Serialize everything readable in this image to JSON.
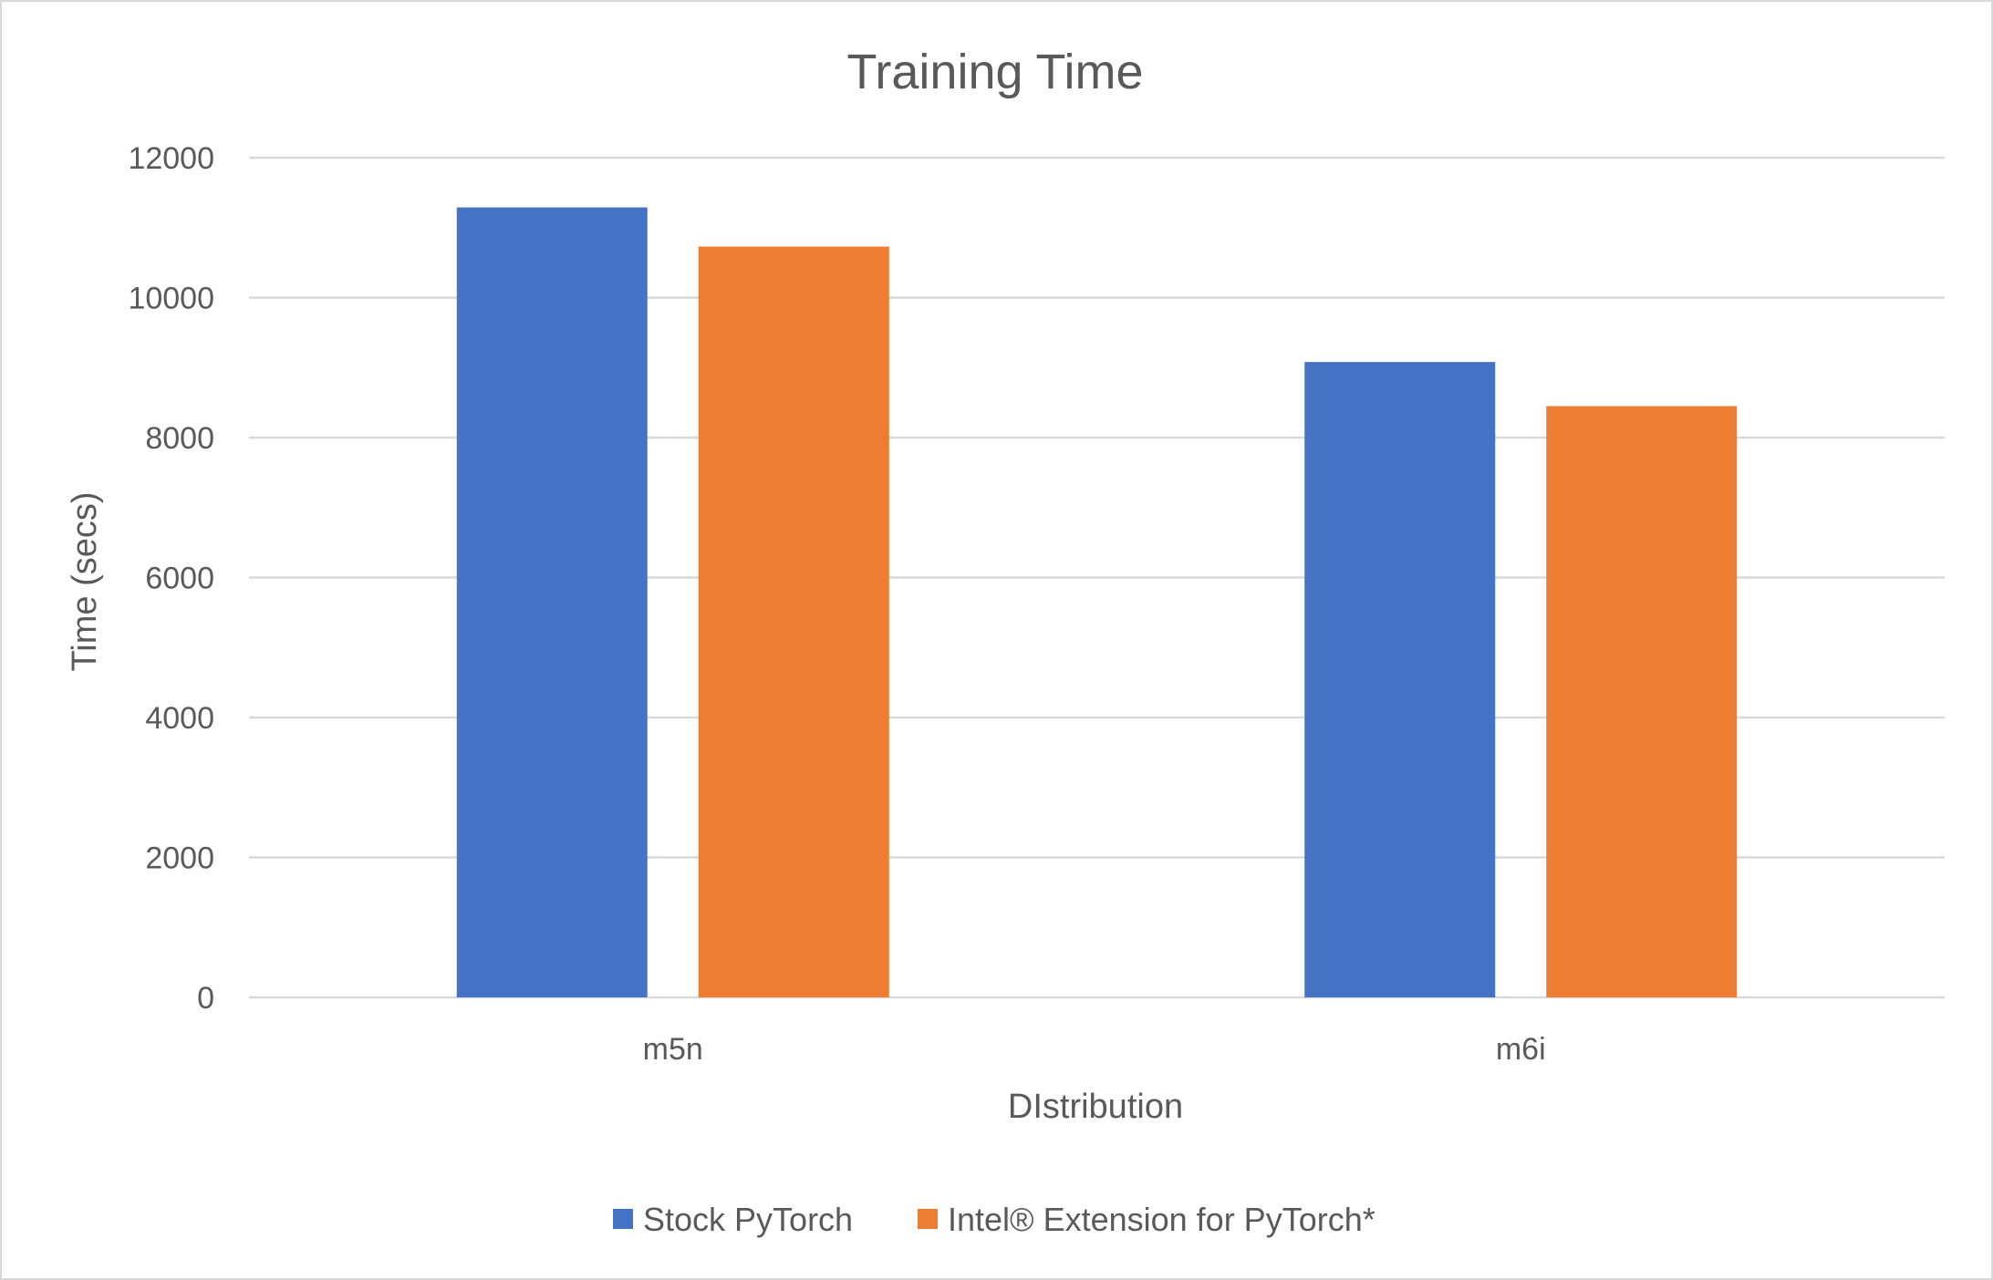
{
  "chart_data": {
    "type": "bar",
    "title": "Training Time",
    "xlabel": "DIstribution",
    "ylabel": "Time (secs)",
    "categories": [
      "m5n",
      "m6i"
    ],
    "series": [
      {
        "name": "Stock PyTorch",
        "color": "#4472C4",
        "values": [
          11290,
          9080
        ]
      },
      {
        "name": "Intel® Extension for PyTorch*",
        "color": "#ED7D31",
        "values": [
          10730,
          8450
        ]
      }
    ],
    "ylim": [
      0,
      12000
    ],
    "yticks": [
      "0",
      "2000",
      "4000",
      "6000",
      "8000",
      "10000",
      "12000"
    ],
    "grid": true,
    "legend_position": "bottom"
  }
}
